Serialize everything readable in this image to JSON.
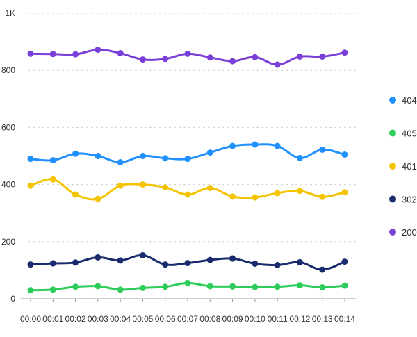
{
  "chart_data": {
    "type": "line",
    "title": "",
    "xlabel": "",
    "ylabel": "",
    "categories": [
      "00:00",
      "00:01",
      "00:02",
      "00:03",
      "00:04",
      "00:05",
      "00:06",
      "00:07",
      "00:08",
      "00:09",
      "00:10",
      "00:11",
      "00:12",
      "00:13",
      "00:14"
    ],
    "ylim": [
      0,
      1000
    ],
    "y_ticks": [
      0,
      200,
      400,
      600,
      800,
      1000
    ],
    "y_tick_labels": [
      "0",
      "200",
      "400",
      "600",
      "800",
      "1K"
    ],
    "grid": "horizontal dashed",
    "smooth": true,
    "legend_position": "right",
    "series": [
      {
        "name": "404",
        "color": "#1e90ff",
        "values": [
          490,
          485,
          508,
          500,
          478,
          500,
          492,
          490,
          512,
          535,
          540,
          535,
          493,
          522,
          505
        ]
      },
      {
        "name": "405",
        "color": "#2ecc5a",
        "values": [
          30,
          32,
          42,
          44,
          32,
          38,
          42,
          55,
          44,
          43,
          41,
          42,
          47,
          40,
          46
        ]
      },
      {
        "name": "401",
        "color": "#f5c400",
        "values": [
          396,
          418,
          365,
          350,
          396,
          400,
          390,
          365,
          388,
          358,
          355,
          370,
          378,
          357,
          373
        ]
      },
      {
        "name": "302",
        "color": "#1a2b6d",
        "values": [
          120,
          124,
          127,
          145,
          134,
          152,
          120,
          125,
          136,
          141,
          123,
          118,
          128,
          102,
          130
        ]
      },
      {
        "name": "200",
        "color": "#7a3fd9",
        "values": [
          858,
          857,
          856,
          872,
          860,
          838,
          840,
          858,
          845,
          832,
          846,
          820,
          848,
          848,
          862
        ]
      }
    ]
  }
}
